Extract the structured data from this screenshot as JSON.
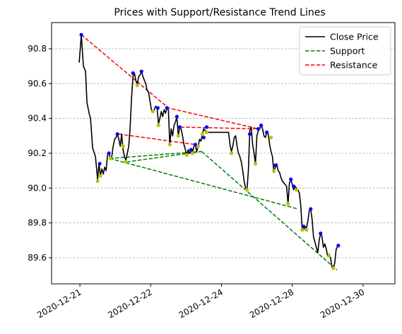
{
  "chart_data": {
    "type": "line",
    "title": "Prices with Support/Resistance Trend Lines",
    "xlabel": "",
    "ylabel": "",
    "x_range": [
      -0.4,
      4.45
    ],
    "ylim": [
      89.45,
      90.95
    ],
    "y_ticks": [
      89.6,
      89.8,
      90.0,
      90.2,
      90.4,
      90.6,
      90.8
    ],
    "x_ticks": [
      {
        "pos": 0,
        "label": "2020-12-21"
      },
      {
        "pos": 1,
        "label": "2020-12-22"
      },
      {
        "pos": 2,
        "label": "2020-12-24"
      },
      {
        "pos": 3,
        "label": "2020-12-28"
      },
      {
        "pos": 4,
        "label": "2020-12-30"
      }
    ],
    "grid": "horizontal dashed",
    "legend": {
      "placement": "top-right",
      "entries": [
        {
          "label": "Close Price",
          "color": "#000000",
          "style": "solid"
        },
        {
          "label": "Support",
          "color": "#008000",
          "style": "dashed"
        },
        {
          "label": "Resistance",
          "color": "#ff0000",
          "style": "dashed"
        }
      ]
    },
    "series": [
      {
        "name": "Close Price",
        "color": "#000000",
        "points": [
          [
            -0.01,
            90.72
          ],
          [
            0.02,
            90.88
          ],
          [
            0.05,
            90.7
          ],
          [
            0.08,
            90.67
          ],
          [
            0.1,
            90.49
          ],
          [
            0.13,
            90.43
          ],
          [
            0.15,
            90.4
          ],
          [
            0.18,
            90.23
          ],
          [
            0.22,
            90.18
          ],
          [
            0.25,
            90.05
          ],
          [
            0.27,
            90.14
          ],
          [
            0.29,
            90.07
          ],
          [
            0.31,
            90.11
          ],
          [
            0.33,
            90.08
          ],
          [
            0.35,
            90.12
          ],
          [
            0.37,
            90.1
          ],
          [
            0.39,
            90.19
          ],
          [
            0.41,
            90.2
          ],
          [
            0.43,
            90.17
          ],
          [
            0.45,
            90.18
          ],
          [
            0.47,
            90.24
          ],
          [
            0.49,
            90.28
          ],
          [
            0.51,
            90.29
          ],
          [
            0.53,
            90.31
          ],
          [
            0.55,
            90.28
          ],
          [
            0.57,
            90.24
          ],
          [
            0.59,
            90.31
          ],
          [
            0.61,
            90.22
          ],
          [
            0.63,
            90.18
          ],
          [
            0.65,
            90.16
          ],
          [
            0.67,
            90.2
          ],
          [
            0.69,
            90.24
          ],
          [
            0.71,
            90.35
          ],
          [
            0.73,
            90.52
          ],
          [
            0.75,
            90.64
          ],
          [
            0.77,
            90.66
          ],
          [
            0.79,
            90.62
          ],
          [
            0.81,
            90.59
          ],
          [
            0.83,
            90.64
          ],
          [
            0.85,
            90.65
          ],
          [
            0.87,
            90.67
          ],
          [
            0.89,
            90.64
          ],
          [
            0.91,
            90.62
          ],
          [
            0.93,
            90.6
          ],
          [
            0.95,
            90.56
          ],
          [
            0.97,
            90.55
          ],
          [
            0.99,
            90.5
          ],
          [
            1.01,
            90.45
          ],
          [
            1.03,
            90.44
          ],
          [
            1.05,
            90.45
          ],
          [
            1.07,
            90.47
          ],
          [
            1.09,
            90.46
          ],
          [
            1.11,
            90.37
          ],
          [
            1.13,
            90.4
          ],
          [
            1.15,
            90.44
          ],
          [
            1.17,
            90.41
          ],
          [
            1.19,
            90.45
          ],
          [
            1.21,
            90.43
          ],
          [
            1.23,
            90.46
          ],
          [
            1.25,
            90.45
          ],
          [
            1.27,
            90.25
          ],
          [
            1.29,
            90.34
          ],
          [
            1.31,
            90.3
          ],
          [
            1.33,
            90.36
          ],
          [
            1.35,
            90.38
          ],
          [
            1.37,
            90.41
          ],
          [
            1.39,
            90.3
          ],
          [
            1.41,
            90.35
          ],
          [
            1.43,
            90.34
          ],
          [
            1.45,
            90.3
          ],
          [
            1.47,
            90.25
          ],
          [
            1.49,
            90.22
          ],
          [
            1.51,
            90.19
          ],
          [
            1.53,
            90.22
          ],
          [
            1.55,
            90.2
          ],
          [
            1.57,
            90.21
          ],
          [
            1.59,
            90.2
          ],
          [
            1.61,
            90.24
          ],
          [
            1.63,
            90.25
          ],
          [
            1.65,
            90.21
          ],
          [
            1.67,
            90.24
          ],
          [
            1.69,
            90.28
          ],
          [
            1.71,
            90.27
          ],
          [
            1.73,
            90.31
          ],
          [
            1.75,
            90.34
          ],
          [
            1.77,
            90.33
          ],
          [
            1.79,
            90.32
          ],
          [
            1.85,
            90.32
          ],
          [
            1.92,
            90.32
          ],
          [
            2.0,
            90.32
          ],
          [
            2.07,
            90.32
          ],
          [
            2.1,
            90.32
          ],
          [
            2.12,
            90.25
          ],
          [
            2.14,
            90.21
          ],
          [
            2.16,
            90.24
          ],
          [
            2.18,
            90.29
          ],
          [
            2.2,
            90.3
          ],
          [
            2.22,
            90.24
          ],
          [
            2.24,
            90.2
          ],
          [
            2.26,
            90.18
          ],
          [
            2.28,
            90.15
          ],
          [
            2.3,
            90.1
          ],
          [
            2.32,
            90.04
          ],
          [
            2.34,
            90.0
          ],
          [
            2.36,
            89.99
          ],
          [
            2.38,
            90.1
          ],
          [
            2.4,
            90.33
          ],
          [
            2.42,
            90.35
          ],
          [
            2.44,
            90.25
          ],
          [
            2.46,
            90.2
          ],
          [
            2.48,
            90.14
          ],
          [
            2.5,
            90.3
          ],
          [
            2.52,
            90.33
          ],
          [
            2.54,
            90.34
          ],
          [
            2.56,
            90.36
          ],
          [
            2.58,
            90.34
          ],
          [
            2.6,
            90.3
          ],
          [
            2.62,
            90.29
          ],
          [
            2.64,
            90.32
          ],
          [
            2.66,
            90.31
          ],
          [
            2.68,
            90.25
          ],
          [
            2.7,
            90.21
          ],
          [
            2.72,
            90.18
          ],
          [
            2.74,
            90.09
          ],
          [
            2.76,
            90.12
          ],
          [
            2.78,
            90.14
          ],
          [
            2.8,
            90.1
          ],
          [
            2.82,
            90.09
          ],
          [
            2.84,
            90.06
          ],
          [
            2.86,
            90.04
          ],
          [
            2.88,
            90.03
          ],
          [
            2.9,
            90.02
          ],
          [
            2.92,
            90.01
          ],
          [
            2.94,
            89.91
          ],
          [
            2.96,
            90.03
          ],
          [
            2.98,
            90.05
          ],
          [
            3.0,
            90.02
          ],
          [
            3.02,
            89.99
          ],
          [
            3.04,
            90.01
          ],
          [
            3.06,
            90.0
          ],
          [
            3.08,
            89.99
          ],
          [
            3.1,
            89.97
          ],
          [
            3.12,
            89.9
          ],
          [
            3.14,
            89.76
          ],
          [
            3.16,
            89.76
          ],
          [
            3.18,
            89.78
          ],
          [
            3.2,
            89.77
          ],
          [
            3.22,
            89.81
          ],
          [
            3.24,
            89.87
          ],
          [
            3.26,
            89.88
          ],
          [
            3.28,
            89.82
          ],
          [
            3.3,
            89.72
          ],
          [
            3.32,
            89.69
          ],
          [
            3.34,
            89.66
          ],
          [
            3.36,
            89.63
          ],
          [
            3.38,
            89.7
          ],
          [
            3.4,
            89.74
          ],
          [
            3.42,
            89.72
          ],
          [
            3.44,
            89.66
          ],
          [
            3.46,
            89.68
          ],
          [
            3.48,
            89.65
          ],
          [
            3.5,
            89.61
          ],
          [
            3.52,
            89.62
          ],
          [
            3.54,
            89.6
          ],
          [
            3.56,
            89.55
          ],
          [
            3.58,
            89.54
          ],
          [
            3.6,
            89.57
          ],
          [
            3.62,
            89.65
          ],
          [
            3.65,
            89.67
          ]
        ]
      }
    ],
    "support_lines": [
      {
        "points": [
          [
            0.42,
            90.17
          ],
          [
            1.72,
            90.21
          ]
        ]
      },
      {
        "points": [
          [
            0.66,
            90.15
          ],
          [
            1.72,
            90.21
          ]
        ]
      },
      {
        "points": [
          [
            0.42,
            90.17
          ],
          [
            3.08,
            89.88
          ]
        ]
      },
      {
        "points": [
          [
            1.72,
            90.21
          ],
          [
            3.63,
            89.53
          ]
        ]
      }
    ],
    "resistance_lines": [
      {
        "points": [
          [
            0.02,
            90.88
          ],
          [
            1.25,
            90.46
          ],
          [
            2.52,
            90.34
          ]
        ]
      },
      {
        "points": [
          [
            1.42,
            90.35
          ],
          [
            2.52,
            90.34
          ]
        ]
      },
      {
        "points": [
          [
            0.55,
            90.31
          ],
          [
            1.63,
            90.25
          ]
        ]
      }
    ],
    "local_max_markers": [
      [
        0.02,
        90.88
      ],
      [
        0.28,
        90.14
      ],
      [
        0.41,
        90.2
      ],
      [
        0.53,
        90.31
      ],
      [
        0.75,
        90.66
      ],
      [
        0.87,
        90.67
      ],
      [
        1.1,
        90.46
      ],
      [
        1.23,
        90.46
      ],
      [
        1.37,
        90.41
      ],
      [
        1.41,
        90.35
      ],
      [
        1.57,
        90.22
      ],
      [
        1.63,
        90.25
      ],
      [
        1.75,
        90.29
      ],
      [
        1.79,
        90.35
      ],
      [
        2.4,
        90.31
      ],
      [
        2.52,
        90.34
      ],
      [
        2.56,
        90.36
      ],
      [
        2.64,
        90.32
      ],
      [
        2.76,
        90.13
      ],
      [
        2.98,
        90.05
      ],
      [
        3.02,
        90.01
      ],
      [
        3.16,
        89.78
      ],
      [
        3.26,
        89.88
      ],
      [
        3.4,
        89.74
      ],
      [
        3.65,
        89.67
      ]
    ],
    "local_min_markers": [
      [
        0.25,
        90.04
      ],
      [
        0.29,
        90.07
      ],
      [
        0.43,
        90.17
      ],
      [
        0.61,
        90.24
      ],
      [
        0.65,
        90.15
      ],
      [
        0.81,
        90.59
      ],
      [
        1.03,
        90.44
      ],
      [
        1.11,
        90.36
      ],
      [
        1.27,
        90.25
      ],
      [
        1.39,
        90.3
      ],
      [
        1.51,
        90.19
      ],
      [
        1.59,
        90.2
      ],
      [
        1.67,
        90.24
      ],
      [
        1.73,
        90.31
      ],
      [
        1.79,
        90.32
      ],
      [
        2.14,
        90.2
      ],
      [
        2.36,
        89.99
      ],
      [
        2.48,
        90.14
      ],
      [
        2.7,
        90.29
      ],
      [
        2.74,
        90.1
      ],
      [
        2.94,
        89.91
      ],
      [
        3.06,
        89.99
      ],
      [
        3.14,
        89.76
      ],
      [
        3.2,
        89.76
      ],
      [
        3.52,
        89.61
      ],
      [
        3.58,
        89.54
      ]
    ]
  }
}
